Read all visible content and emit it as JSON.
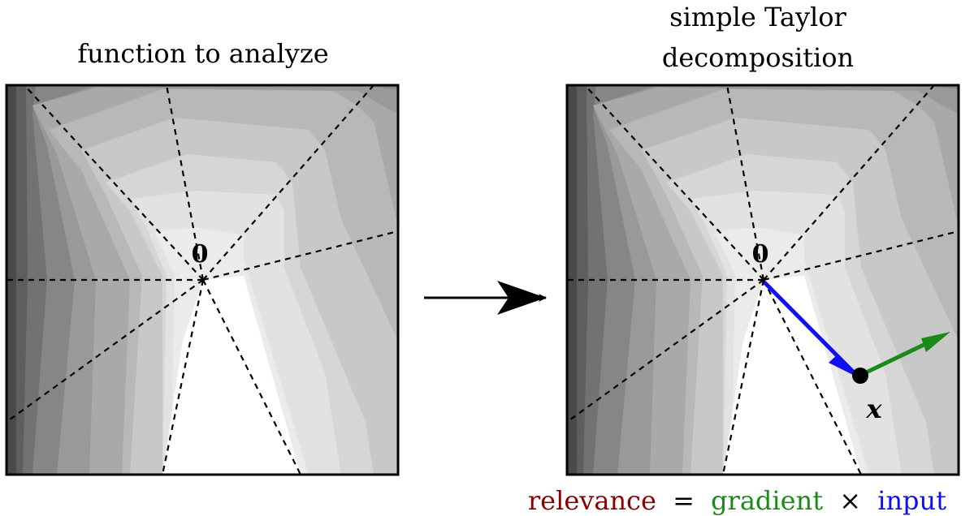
{
  "left_panel": {
    "title": "function to analyze",
    "origin_label": "0"
  },
  "right_panel": {
    "title_lines": [
      "simple Taylor",
      "decomposition"
    ],
    "origin_label": "0",
    "point_label": "x"
  },
  "formula": {
    "relevance": "relevance",
    "equals": "=",
    "gradient": "gradient",
    "times": "×",
    "input": "input"
  },
  "colors": {
    "relevance": "#8b0000",
    "gradient": "#1a8a1a",
    "input": "#1010ee",
    "frame": "#000000",
    "boundaries": "#000000",
    "point": "#000000"
  },
  "icons": {
    "transition_arrow": "right-arrow-icon",
    "input_vector": "blue-arrow-icon",
    "gradient_vector": "green-arrow-icon"
  }
}
